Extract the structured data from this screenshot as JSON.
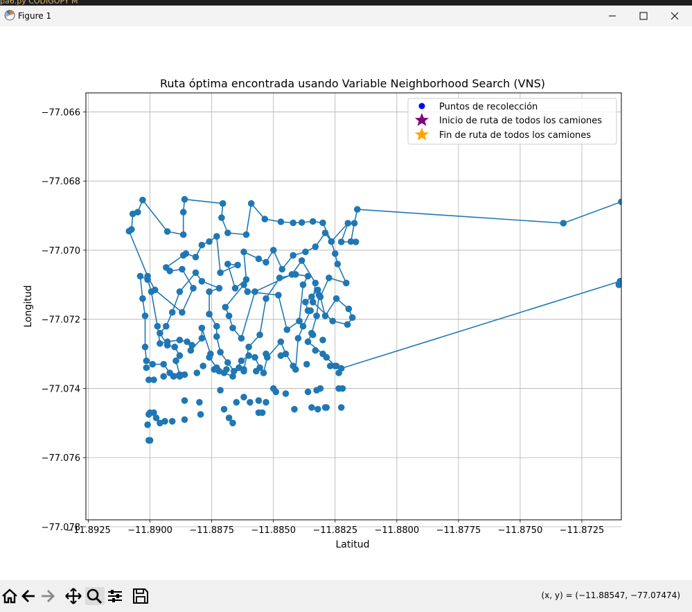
{
  "background_strip": {
    "text": "pa6.py  CODIGOPY        M"
  },
  "window": {
    "title": "Figure 1"
  },
  "toolbar": {
    "buttons": [
      "home-icon",
      "back-icon",
      "forward-icon",
      "pan-icon",
      "zoom-icon",
      "configure-subplots-icon",
      "save-icon"
    ],
    "coordinates": "(x, y) = (−11.88547, −77.07474)"
  },
  "chart_data": {
    "type": "line",
    "title": "Ruta óptima encontrada usando Variable Neighborhood Search (VNS)",
    "xlabel": "Latitud",
    "ylabel": "Longitud",
    "xlim": [
      -11.8926,
      -11.8709
    ],
    "ylim": [
      -77.0778,
      -77.06545
    ],
    "xticks": [
      -11.8925,
      -11.89,
      -11.8875,
      -11.885,
      -11.8825,
      -11.88,
      -11.8775,
      -11.875,
      -11.8725
    ],
    "xtick_labels": [
      "−11.8925",
      "−11.8900",
      "−11.8875",
      "−11.8850",
      "−11.8825",
      "−11.8800",
      "−11.8775",
      "−11.8750",
      "−11.8725"
    ],
    "yticks": [
      -77.066,
      -77.068,
      -77.07,
      -77.072,
      -77.074,
      -77.076,
      -77.078
    ],
    "ytick_labels": [
      "−77.066",
      "−77.068",
      "−77.070",
      "−77.072",
      "−77.074",
      "−77.076",
      "−77.078"
    ],
    "grid": true,
    "legend": {
      "placement": "top-right",
      "entries": [
        {
          "label": "Puntos de recolección",
          "marker": "circle",
          "color": "#0000ff"
        },
        {
          "label": "Inicio de ruta de todos los camiones",
          "marker": "star",
          "color": "#800080"
        },
        {
          "label": "Fin de ruta de todos los camiones",
          "marker": "star",
          "color": "#ffa500"
        }
      ]
    },
    "line_color": "#1f77b4",
    "route": [
      [
        -11.8709,
        -77.0686
      ],
      [
        -11.87325,
        -77.06922
      ],
      [
        -11.8816,
        -77.06882
      ],
      [
        -11.88172,
        -77.06922
      ],
      [
        -11.88186,
        -77.06975
      ],
      [
        -11.88166,
        -77.06976
      ],
      [
        -11.88225,
        -77.06976
      ],
      [
        -11.88198,
        -77.06922
      ],
      [
        -11.88265,
        -77.06975
      ],
      [
        -11.883,
        -77.06921
      ],
      [
        -11.8834,
        -77.06917
      ],
      [
        -11.88385,
        -77.0692
      ],
      [
        -11.8842,
        -77.06921
      ],
      [
        -11.8847,
        -77.06918
      ],
      [
        -11.88535,
        -77.0691
      ],
      [
        -11.8859,
        -77.06865
      ],
      [
        -11.8861,
        -77.06955
      ],
      [
        -11.88685,
        -77.0695
      ],
      [
        -11.8871,
        -77.06906
      ],
      [
        -11.88705,
        -77.06865
      ],
      [
        -11.8886,
        -77.06853
      ],
      [
        -11.88865,
        -77.0689
      ],
      [
        -11.88865,
        -77.06955
      ],
      [
        -11.8893,
        -77.06946
      ],
      [
        -11.8903,
        -77.06855
      ],
      [
        -11.8905,
        -77.0689
      ],
      [
        -11.8907,
        -77.06895
      ],
      [
        -11.89075,
        -77.0694
      ],
      [
        -11.89085,
        -77.06945
      ],
      [
        -11.8901,
        -77.07075
      ],
      [
        -11.8898,
        -77.07115
      ],
      [
        -11.8887,
        -77.0718
      ],
      [
        -11.88825,
        -77.0711
      ],
      [
        -11.8887,
        -77.07055
      ],
      [
        -11.8892,
        -77.0706
      ],
      [
        -11.88935,
        -77.0705
      ],
      [
        -11.88865,
        -77.07015
      ],
      [
        -11.88855,
        -77.0701
      ],
      [
        -11.88815,
        -77.0702
      ],
      [
        -11.8879,
        -77.06985
      ],
      [
        -11.8876,
        -77.06975
      ],
      [
        -11.8873,
        -77.0696
      ],
      [
        -11.88715,
        -77.07065
      ],
      [
        -11.88645,
        -77.07043
      ],
      [
        -11.88685,
        -77.0704
      ],
      [
        -11.88655,
        -77.0711
      ],
      [
        -11.8861,
        -77.07085
      ],
      [
        -11.8862,
        -77.07005
      ],
      [
        -11.8856,
        -77.07025
      ],
      [
        -11.8853,
        -77.07035
      ],
      [
        -11.885,
        -77.07
      ],
      [
        -11.88465,
        -77.07055
      ],
      [
        -11.8842,
        -77.07015
      ],
      [
        -11.8837,
        -77.07005
      ],
      [
        -11.8833,
        -77.0699
      ],
      [
        -11.8829,
        -77.0695
      ],
      [
        -11.88265,
        -77.06975
      ],
      [
        -11.8825,
        -77.0701
      ],
      [
        -11.8824,
        -77.0704
      ],
      [
        -11.88205,
        -77.07095
      ],
      [
        -11.88275,
        -77.0708
      ],
      [
        -11.8831,
        -77.07135
      ],
      [
        -11.8829,
        -77.0719
      ],
      [
        -11.88245,
        -77.0714
      ],
      [
        -11.88195,
        -77.0717
      ],
      [
        -11.8818,
        -77.07195
      ],
      [
        -11.882,
        -77.07215
      ],
      [
        -11.8826,
        -77.07205
      ],
      [
        -11.8834,
        -77.0715
      ],
      [
        -11.8833,
        -77.07095
      ],
      [
        -11.88385,
        -77.0703
      ],
      [
        -11.88425,
        -77.0707
      ],
      [
        -11.88575,
        -77.0712
      ],
      [
        -11.8863,
        -77.07255
      ],
      [
        -11.88665,
        -77.07225
      ],
      [
        -11.8868,
        -77.0719
      ],
      [
        -11.88695,
        -77.07165
      ],
      [
        -11.8862,
        -77.071
      ],
      [
        -11.88605,
        -77.0712
      ],
      [
        -11.8848,
        -77.0713
      ],
      [
        -11.88445,
        -77.0723
      ],
      [
        -11.88395,
        -77.07205
      ],
      [
        -11.8838,
        -77.071
      ],
      [
        -11.8836,
        -77.07075
      ],
      [
        -11.8841,
        -77.0707
      ],
      [
        -11.88475,
        -77.0708
      ],
      [
        -11.8853,
        -77.0714
      ],
      [
        -11.88555,
        -77.07245
      ],
      [
        -11.886,
        -77.0728
      ],
      [
        -11.8862,
        -77.07345
      ],
      [
        -11.8866,
        -77.0735
      ],
      [
        -11.88685,
        -77.07325
      ],
      [
        -11.88715,
        -77.07295
      ],
      [
        -11.8873,
        -77.0725
      ],
      [
        -11.8873,
        -77.0722
      ],
      [
        -11.8876,
        -77.07185
      ],
      [
        -11.8876,
        -77.0712
      ],
      [
        -11.8872,
        -77.0711
      ],
      [
        -11.8879,
        -77.0709
      ],
      [
        -11.88815,
        -77.07065
      ],
      [
        -11.8888,
        -77.0712
      ],
      [
        -11.8891,
        -77.0718
      ],
      [
        -11.88935,
        -77.0722
      ],
      [
        -11.8896,
        -77.0724
      ],
      [
        -11.8893,
        -77.07275
      ],
      [
        -11.889,
        -77.0728
      ],
      [
        -11.8888,
        -77.07305
      ],
      [
        -11.88895,
        -77.0732
      ],
      [
        -11.8888,
        -77.0736
      ],
      [
        -11.8892,
        -77.07355
      ],
      [
        -11.88945,
        -77.0733
      ],
      [
        -11.8899,
        -77.0733
      ],
      [
        -11.89015,
        -77.0732
      ],
      [
        -11.8902,
        -77.0728
      ],
      [
        -11.8902,
        -77.0719
      ],
      [
        -11.8903,
        -77.0714
      ],
      [
        -11.8904,
        -77.07075
      ],
      [
        -11.8901,
        -77.07085
      ],
      [
        -11.88995,
        -77.0712
      ],
      [
        -11.8897,
        -77.0722
      ],
      [
        -11.8896,
        -77.0727
      ],
      [
        -11.8893,
        -77.07265
      ],
      [
        -11.8888,
        -77.0726
      ],
      [
        -11.8885,
        -77.07265
      ],
      [
        -11.8883,
        -77.07275
      ],
      [
        -11.88835,
        -77.0729
      ],
      [
        -11.8879,
        -77.07255
      ],
      [
        -11.8879,
        -77.07225
      ],
      [
        -11.88755,
        -77.073
      ],
      [
        -11.8876,
        -77.0731
      ],
      [
        -11.8873,
        -77.0734
      ],
      [
        -11.887,
        -77.07355
      ],
      [
        -11.88665,
        -77.07365
      ],
      [
        -11.8863,
        -77.0732
      ],
      [
        -11.886,
        -77.07305
      ],
      [
        -11.88575,
        -77.0731
      ],
      [
        -11.88555,
        -77.0734
      ],
      [
        -11.8854,
        -77.07355
      ],
      [
        -11.88525,
        -77.0731
      ],
      [
        -11.8847,
        -77.07265
      ],
      [
        -11.8845,
        -77.073
      ],
      [
        -11.8841,
        -77.07345
      ],
      [
        -11.884,
        -77.07255
      ],
      [
        -11.8838,
        -77.0722
      ],
      [
        -11.8835,
        -77.07175
      ],
      [
        -11.8836,
        -77.07175
      ],
      [
        -11.8837,
        -77.0715
      ],
      [
        -11.88345,
        -77.07135
      ],
      [
        -11.8832,
        -77.07115
      ],
      [
        -11.88315,
        -77.0713
      ],
      [
        -11.88325,
        -77.0719
      ],
      [
        -11.88345,
        -77.0724
      ],
      [
        -11.8836,
        -77.07265
      ],
      [
        -11.883,
        -77.073
      ],
      [
        -11.88285,
        -77.0731
      ],
      [
        -11.8825,
        -77.07335
      ],
      [
        -11.88225,
        -77.07342
      ],
      [
        -11.87095,
        -77.0709
      ],
      [
        -11.871,
        -77.071
      ]
    ],
    "points": [
      [
        -11.89015,
        -77.0734
      ],
      [
        -11.89005,
        -77.07375
      ],
      [
        -11.88985,
        -77.07375
      ],
      [
        -11.88945,
        -77.07365
      ],
      [
        -11.88905,
        -77.07365
      ],
      [
        -11.8888,
        -77.07365
      ],
      [
        -11.8886,
        -77.0736
      ],
      [
        -11.8881,
        -77.07355
      ],
      [
        -11.88785,
        -77.07335
      ],
      [
        -11.8874,
        -77.07345
      ],
      [
        -11.8872,
        -77.0735
      ],
      [
        -11.8869,
        -77.07345
      ],
      [
        -11.8864,
        -77.0734
      ],
      [
        -11.8862,
        -77.0735
      ],
      [
        -11.8857,
        -77.0735
      ],
      [
        -11.8853,
        -77.073
      ],
      [
        -11.8847,
        -77.07305
      ],
      [
        -11.8842,
        -77.07335
      ],
      [
        -11.88365,
        -77.0733
      ],
      [
        -11.8833,
        -77.0729
      ],
      [
        -11.8834,
        -77.07245
      ],
      [
        -11.883,
        -77.0726
      ],
      [
        -11.8827,
        -77.07335
      ],
      [
        -11.88245,
        -77.07335
      ],
      [
        -11.88235,
        -77.07355
      ],
      [
        -11.8822,
        -77.074
      ],
      [
        -11.88235,
        -77.074
      ],
      [
        -11.88225,
        -77.07455
      ],
      [
        -11.88285,
        -77.07455
      ],
      [
        -11.8831,
        -77.074
      ],
      [
        -11.8829,
        -77.07455
      ],
      [
        -11.8832,
        -77.0746
      ],
      [
        -11.88345,
        -77.07455
      ],
      [
        -11.88325,
        -77.07405
      ],
      [
        -11.8836,
        -77.0741
      ],
      [
        -11.88415,
        -77.0746
      ],
      [
        -11.8845,
        -77.07415
      ],
      [
        -11.8849,
        -77.0741
      ],
      [
        -11.885,
        -77.074
      ],
      [
        -11.8853,
        -77.0744
      ],
      [
        -11.8856,
        -77.07435
      ],
      [
        -11.88545,
        -77.0747
      ],
      [
        -11.8856,
        -77.0747
      ],
      [
        -11.88595,
        -77.0744
      ],
      [
        -11.8862,
        -77.07425
      ],
      [
        -11.8865,
        -77.0744
      ],
      [
        -11.88665,
        -77.075
      ],
      [
        -11.8868,
        -77.07485
      ],
      [
        -11.887,
        -77.0746
      ],
      [
        -11.88715,
        -77.07405
      ],
      [
        -11.88795,
        -77.07475
      ],
      [
        -11.888,
        -77.0744
      ],
      [
        -11.8886,
        -77.07435
      ],
      [
        -11.8886,
        -77.0749
      ],
      [
        -11.8891,
        -77.07495
      ],
      [
        -11.8894,
        -77.07495
      ],
      [
        -11.88975,
        -77.07485
      ],
      [
        -11.88985,
        -77.0747
      ],
      [
        -11.8896,
        -77.075
      ],
      [
        -11.8901,
        -77.07505
      ],
      [
        -11.89005,
        -77.0755
      ],
      [
        -11.89,
        -77.0755
      ],
      [
        -11.89005,
        -77.07475
      ],
      [
        -11.89,
        -77.0747
      ]
    ]
  }
}
